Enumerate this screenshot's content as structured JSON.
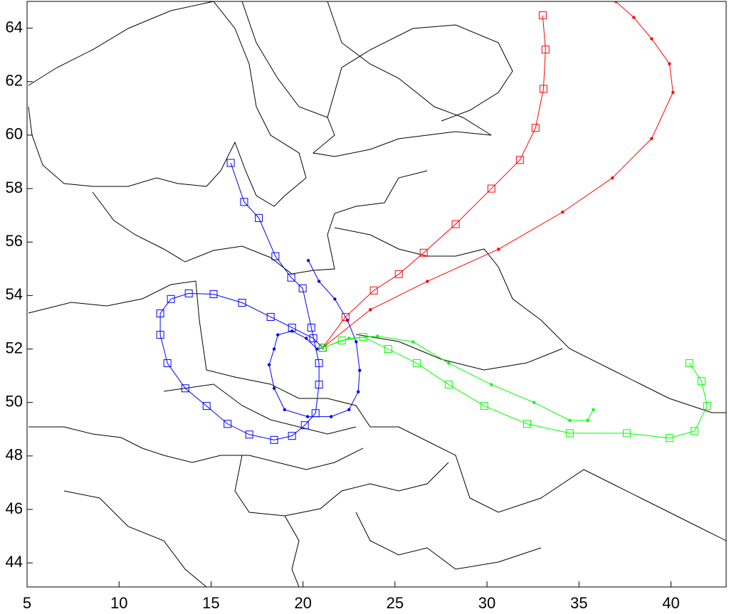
{
  "chart_data": {
    "type": "line",
    "xlim": [
      5,
      43
    ],
    "ylim": [
      43.1,
      65
    ],
    "xticks": [
      5,
      10,
      15,
      20,
      25,
      30,
      35,
      40
    ],
    "yticks": [
      44,
      46,
      48,
      50,
      52,
      54,
      56,
      58,
      60,
      62,
      64
    ],
    "grid": false,
    "series": [
      {
        "color": "#0000ff",
        "marker": "square",
        "x": [
          16.07,
          16.8,
          17.6,
          18.5,
          19.36,
          19.98,
          20.45,
          20.87,
          20.87,
          20.68,
          20.1,
          19.4,
          18.43,
          17.08,
          15.9,
          14.76,
          13.6,
          12.63,
          12.24,
          12.24,
          12.82,
          13.79,
          15.14,
          16.69,
          18.24,
          19.4,
          20.56,
          21.07
        ],
        "values": [
          58.96,
          57.5,
          56.9,
          55.47,
          54.67,
          54.27,
          52.8,
          51.47,
          50.67,
          49.6,
          49.15,
          48.75,
          48.6,
          48.8,
          49.2,
          49.87,
          50.53,
          51.47,
          52.53,
          53.33,
          53.87,
          54.08,
          54.05,
          53.73,
          53.2,
          52.8,
          52.4,
          52.05
        ]
      },
      {
        "color": "#0000ff",
        "marker": "dot",
        "x": [
          20.29,
          20.87,
          21.73,
          22.42,
          22.89,
          23.08,
          23.0,
          22.5,
          21.53,
          20.25,
          19.0,
          18.43,
          18.16,
          18.43,
          18.63,
          19.4,
          20.18,
          20.76,
          21.07
        ],
        "values": [
          55.31,
          54.53,
          53.87,
          53.07,
          52.27,
          51.2,
          50.4,
          49.73,
          49.47,
          49.47,
          49.73,
          50.53,
          51.41,
          52.0,
          52.53,
          52.67,
          52.4,
          52.0,
          52.05
        ]
      },
      {
        "color": "#ff0000",
        "marker": "square",
        "x": [
          21.07,
          22.31,
          23.85,
          25.21,
          26.56,
          28.3,
          30.24,
          31.79,
          32.64,
          33.07,
          33.18,
          33.03
        ],
        "values": [
          52.05,
          53.2,
          54.19,
          54.8,
          55.6,
          56.67,
          58.0,
          59.07,
          60.27,
          61.73,
          63.2,
          64.48
        ]
      },
      {
        "color": "#ff0000",
        "marker": "dot",
        "x": [
          21.07,
          23.66,
          26.76,
          30.63,
          34.11,
          36.82,
          38.95,
          40.11,
          39.92,
          38.95,
          37.98,
          37.0
        ],
        "values": [
          52.05,
          53.47,
          54.53,
          55.73,
          57.12,
          58.4,
          59.87,
          61.6,
          62.67,
          63.6,
          64.4,
          65.0
        ]
      },
      {
        "color": "#00ff00",
        "marker": "square",
        "x": [
          21.07,
          22.11,
          23.27,
          24.63,
          26.18,
          27.92,
          29.85,
          32.18,
          34.5,
          37.6,
          39.92,
          41.28,
          41.97,
          41.66,
          41.0
        ],
        "values": [
          52.05,
          52.32,
          52.45,
          52.0,
          51.47,
          50.67,
          49.87,
          49.2,
          48.85,
          48.85,
          48.67,
          48.93,
          49.87,
          50.8,
          51.47
        ]
      },
      {
        "color": "#00ff00",
        "marker": "dot",
        "x": [
          21.07,
          22.5,
          24.05,
          25.98,
          27.92,
          30.24,
          32.56,
          34.5,
          35.47,
          35.78
        ],
        "values": [
          52.05,
          52.4,
          52.48,
          52.27,
          51.47,
          50.67,
          50.0,
          49.33,
          49.33,
          49.73
        ]
      }
    ]
  }
}
